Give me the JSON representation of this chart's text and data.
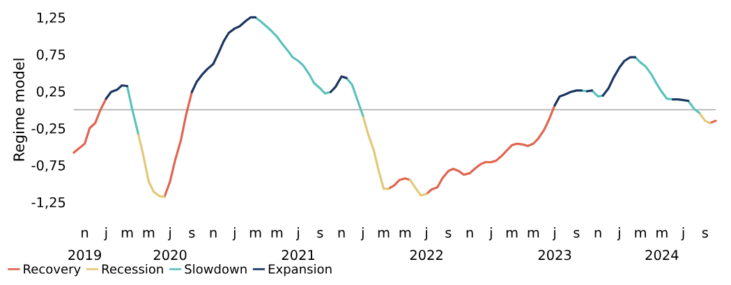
{
  "chart_data": {
    "type": "line",
    "ylabel": "Regime model",
    "xlim": [
      "2019-10-01",
      "2024-10-01"
    ],
    "xticks": [
      {
        "value": "2019-11-01",
        "label": "n\n2019"
      },
      {
        "value": "2020-01-01",
        "label": "j"
      },
      {
        "value": "2020-03-01",
        "label": "m"
      },
      {
        "value": "2020-05-01",
        "label": "m"
      },
      {
        "value": "2020-07-01",
        "label": "j\n2020"
      },
      {
        "value": "2020-09-01",
        "label": "s"
      },
      {
        "value": "2020-11-01",
        "label": "n"
      },
      {
        "value": "2021-01-01",
        "label": "j"
      },
      {
        "value": "2021-03-01",
        "label": "m"
      },
      {
        "value": "2021-05-01",
        "label": "m"
      },
      {
        "value": "2021-07-01",
        "label": "j\n2021"
      },
      {
        "value": "2021-09-01",
        "label": "s"
      },
      {
        "value": "2021-11-01",
        "label": "n"
      },
      {
        "value": "2022-01-01",
        "label": "j"
      },
      {
        "value": "2022-03-01",
        "label": "m"
      },
      {
        "value": "2022-05-01",
        "label": "m"
      },
      {
        "value": "2022-07-01",
        "label": "j\n2022"
      },
      {
        "value": "2022-09-01",
        "label": "s"
      },
      {
        "value": "2022-11-01",
        "label": "n"
      },
      {
        "value": "2023-01-01",
        "label": "j"
      },
      {
        "value": "2023-03-01",
        "label": "m"
      },
      {
        "value": "2023-05-01",
        "label": "m"
      },
      {
        "value": "2023-07-01",
        "label": "j\n2023"
      },
      {
        "value": "2023-09-01",
        "label": "s"
      },
      {
        "value": "2023-11-01",
        "label": "n"
      },
      {
        "value": "2024-01-01",
        "label": "j"
      },
      {
        "value": "2024-03-01",
        "label": "m"
      },
      {
        "value": "2024-05-01",
        "label": "m\n2024"
      },
      {
        "value": "2024-07-01",
        "label": "j"
      },
      {
        "value": "2024-09-01",
        "label": "s"
      }
    ],
    "ylim": [
      -1.25,
      1.25
    ],
    "yticks": [
      {
        "value": 1.25,
        "label": "1,25"
      },
      {
        "value": 0.75,
        "label": "0,75"
      },
      {
        "value": 0.25,
        "label": "0,25"
      },
      {
        "value": -0.25,
        "label": "-0,25"
      },
      {
        "value": -0.75,
        "label": "-0,75"
      },
      {
        "value": -1.25,
        "label": "-1,25"
      }
    ],
    "ref_lines": [
      {
        "axis": "y",
        "value": 0,
        "color": "#a6a6a6"
      }
    ],
    "legend": "bottom",
    "grid": false,
    "marker": "none",
    "line_style": "solid",
    "series": [
      {
        "name": "Recovery",
        "color": "#e0644f",
        "x": [
          "2019-10-01",
          "2019-11-01",
          "2019-11-15",
          "2019-12-01",
          "2019-12-15",
          "2020-01-01",
          null,
          "2020-06-15",
          "2020-07-01",
          "2020-07-15",
          "2020-08-01",
          "2020-08-15",
          "2020-09-01",
          null,
          "2022-03-15",
          "2022-04-01",
          "2022-04-15",
          "2022-05-01",
          "2022-05-15",
          null,
          "2022-07-01",
          "2022-07-15",
          "2022-08-01",
          "2022-08-15",
          "2022-09-01",
          "2022-09-15",
          "2022-10-01",
          "2022-10-15",
          "2022-11-01",
          "2022-11-15",
          "2022-12-01",
          "2022-12-15",
          "2023-01-01",
          "2023-01-15",
          "2023-02-01",
          "2023-02-15",
          "2023-03-01",
          "2023-03-15",
          "2023-04-01",
          "2023-04-15",
          "2023-05-01",
          "2023-05-15",
          "2023-06-01",
          "2023-06-15",
          "2023-07-01",
          null,
          "2024-09-15",
          "2024-10-01"
        ],
        "values": [
          -0.58,
          -0.46,
          -0.25,
          -0.18,
          -0.01,
          0.15,
          null,
          -1.18,
          -0.97,
          -0.69,
          -0.41,
          -0.08,
          0.24,
          null,
          -1.07,
          -1.02,
          -0.95,
          -0.93,
          -0.95,
          null,
          -1.14,
          -1.08,
          -1.05,
          -0.93,
          -0.83,
          -0.8,
          -0.83,
          -0.88,
          -0.86,
          -0.8,
          -0.74,
          -0.71,
          -0.71,
          -0.69,
          -0.62,
          -0.55,
          -0.48,
          -0.46,
          -0.47,
          -0.49,
          -0.46,
          -0.39,
          -0.27,
          -0.13,
          0.06,
          null,
          -0.18,
          -0.15
        ]
      },
      {
        "name": "Recession",
        "color": "#e2c878",
        "x": [
          "2020-04-01",
          "2020-04-15",
          "2020-05-01",
          "2020-05-15",
          "2020-06-01",
          "2020-06-15",
          null,
          "2022-01-01",
          "2022-01-15",
          "2022-02-01",
          "2022-02-15",
          "2022-03-01",
          "2022-03-15",
          null,
          "2022-05-15",
          "2022-06-01",
          "2022-06-15",
          "2022-07-01",
          null,
          "2024-08-15",
          "2024-09-01",
          "2024-09-15"
        ],
        "values": [
          -0.32,
          -0.6,
          -0.97,
          -1.11,
          -1.17,
          -1.18,
          null,
          -0.08,
          -0.32,
          -0.55,
          -0.83,
          -1.07,
          -1.07,
          null,
          -0.95,
          -1.07,
          -1.16,
          -1.14,
          null,
          -0.04,
          -0.15,
          -0.18
        ]
      },
      {
        "name": "Slowdown",
        "color": "#5bc2bb",
        "x": [
          "2020-03-01",
          "2020-03-15",
          "2020-04-01",
          null,
          "2021-03-01",
          "2021-03-15",
          "2021-04-01",
          "2021-04-15",
          "2021-05-01",
          "2021-05-15",
          "2021-06-01",
          "2021-06-15",
          "2021-07-01",
          "2021-07-15",
          "2021-08-01",
          "2021-08-15",
          "2021-09-01",
          "2021-09-15",
          "2021-10-01",
          null,
          "2021-11-15",
          "2021-12-01",
          "2021-12-15",
          "2022-01-01",
          null,
          "2023-09-15",
          "2023-10-01",
          null,
          "2023-10-15",
          "2023-11-01",
          "2023-11-15",
          null,
          "2024-02-15",
          "2024-03-01",
          "2024-03-15",
          "2024-04-01",
          "2024-04-15",
          "2024-05-01",
          "2024-05-15",
          "2024-06-01",
          null,
          "2024-07-15",
          "2024-08-01",
          "2024-08-15"
        ],
        "values": [
          0.32,
          0.01,
          -0.32,
          null,
          1.25,
          1.2,
          1.13,
          1.07,
          0.99,
          0.9,
          0.8,
          0.71,
          0.66,
          0.6,
          0.48,
          0.36,
          0.29,
          0.22,
          0.24,
          null,
          0.43,
          0.34,
          0.15,
          -0.08,
          null,
          0.26,
          0.25,
          null,
          0.26,
          0.18,
          0.19,
          null,
          0.71,
          0.64,
          0.59,
          0.48,
          0.36,
          0.24,
          0.15,
          0.14,
          null,
          0.12,
          0.01,
          -0.04
        ]
      },
      {
        "name": "Expansion",
        "color": "#1b3561",
        "x": [
          "2020-01-01",
          "2020-01-15",
          "2020-02-01",
          "2020-02-15",
          "2020-03-01",
          null,
          "2020-09-01",
          "2020-09-15",
          "2020-10-01",
          "2020-10-15",
          "2020-11-01",
          "2020-11-15",
          "2020-12-01",
          "2020-12-15",
          "2021-01-01",
          "2021-01-15",
          "2021-02-01",
          "2021-02-15",
          "2021-03-01",
          null,
          "2021-10-01",
          "2021-10-15",
          "2021-11-01",
          "2021-11-15",
          null,
          "2023-07-01",
          "2023-07-15",
          "2023-08-01",
          "2023-08-15",
          "2023-09-01",
          "2023-09-15",
          null,
          "2023-10-01",
          "2023-10-15",
          null,
          "2023-11-15",
          "2023-12-01",
          "2023-12-15",
          "2024-01-01",
          "2024-01-15",
          "2024-02-01",
          "2024-02-15",
          null,
          "2024-06-01",
          "2024-06-15",
          "2024-07-01",
          "2024-07-15"
        ],
        "values": [
          0.15,
          0.24,
          0.27,
          0.33,
          0.32,
          null,
          0.24,
          0.38,
          0.48,
          0.55,
          0.62,
          0.76,
          0.93,
          1.04,
          1.1,
          1.13,
          1.2,
          1.25,
          1.25,
          null,
          0.24,
          0.31,
          0.45,
          0.43,
          null,
          0.06,
          0.18,
          0.21,
          0.24,
          0.26,
          0.26,
          null,
          0.25,
          0.26,
          null,
          0.19,
          0.29,
          0.43,
          0.57,
          0.66,
          0.71,
          0.71,
          null,
          0.14,
          0.14,
          0.13,
          0.12
        ]
      }
    ]
  }
}
